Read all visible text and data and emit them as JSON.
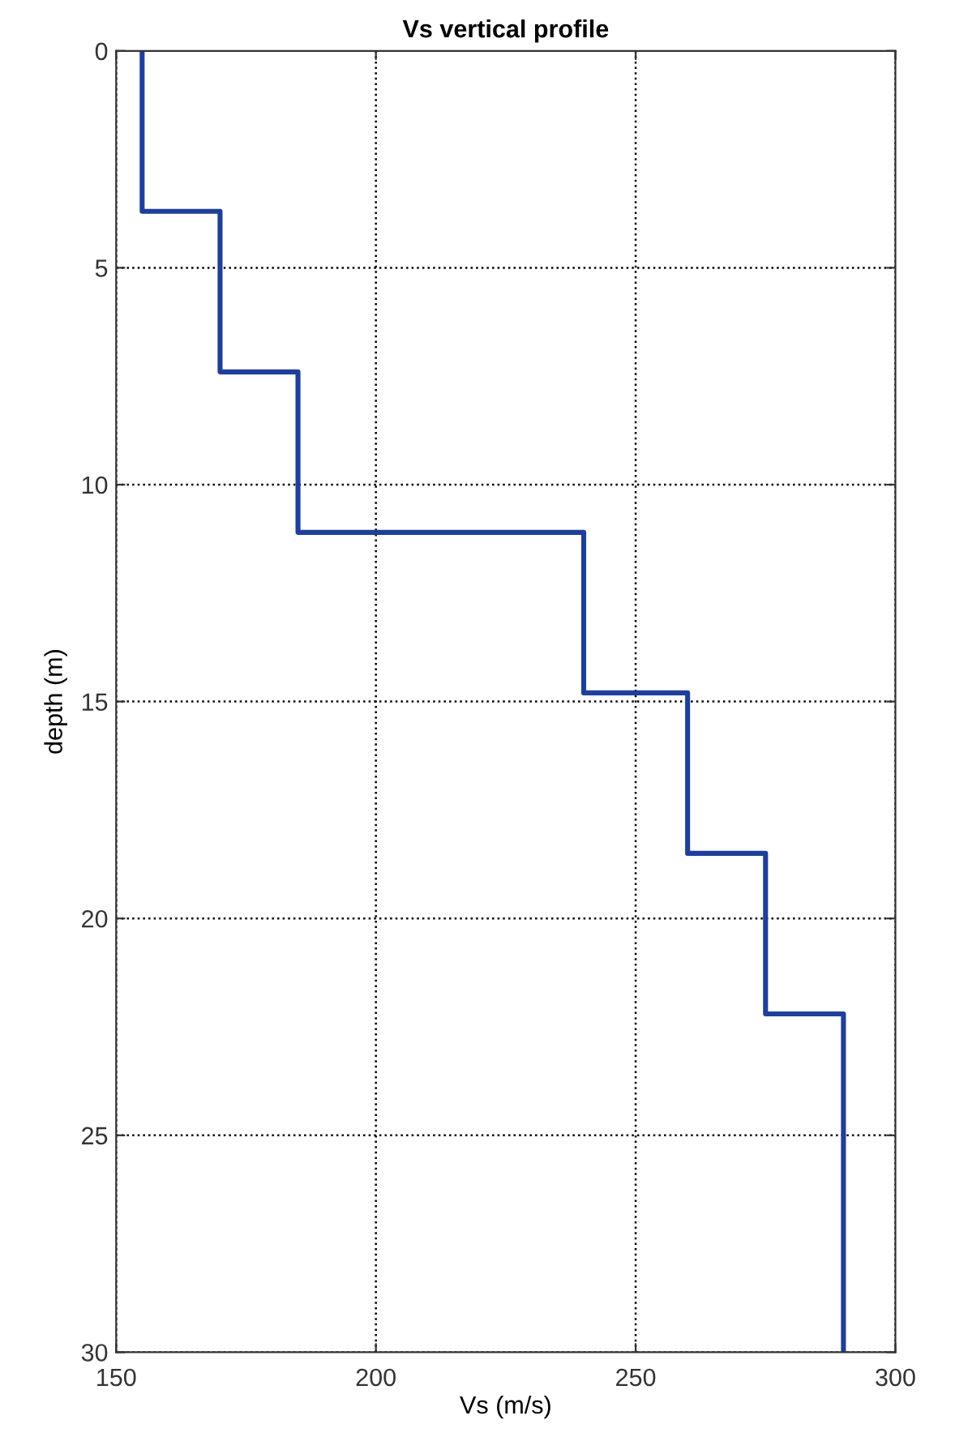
{
  "chart_data": {
    "type": "line",
    "title": "Vs vertical profile",
    "xlabel": "Vs (m/s)",
    "ylabel": "depth (m)",
    "series": [
      {
        "color": "#1f3f9a",
        "x": [
          155,
          155,
          170,
          170,
          185,
          185,
          240,
          240,
          260,
          260,
          275,
          275,
          290,
          290
        ],
        "values": [
          0,
          3.7,
          3.7,
          7.4,
          7.4,
          11.1,
          11.1,
          14.8,
          14.8,
          18.5,
          18.5,
          22.2,
          22.2,
          30
        ]
      }
    ],
    "xlim": [
      150,
      300
    ],
    "xticks": [
      150,
      200,
      250,
      300
    ],
    "ylim": [
      30,
      0
    ],
    "yticks": [
      0,
      5,
      10,
      15,
      20,
      25,
      30
    ],
    "grid": true,
    "line_style": "solid",
    "marker": "none"
  }
}
